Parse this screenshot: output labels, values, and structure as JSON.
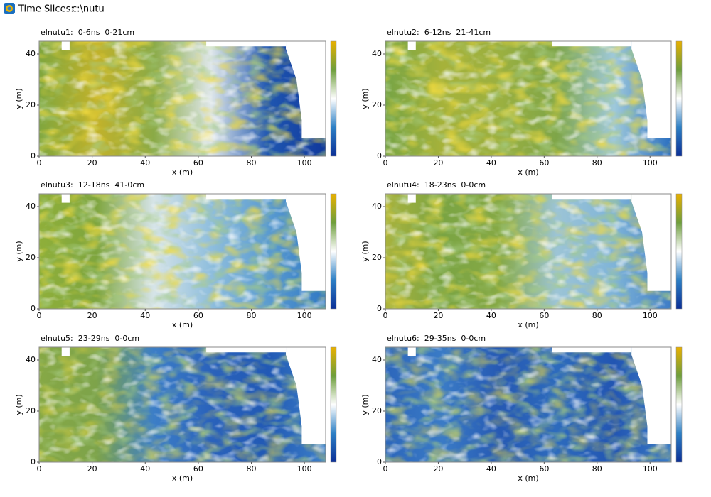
{
  "header": {
    "title": "Time Slices:",
    "path": "c:\\nutu"
  },
  "chart_data": [
    {
      "type": "heatmap",
      "title": "elnutu1:  0-6ns  0-21cm",
      "xlabel": "x (m)",
      "ylabel": "y (m)",
      "xlim": [
        0,
        108
      ],
      "ylim": [
        0,
        45
      ],
      "xticks": [
        0,
        20,
        40,
        60,
        80,
        100
      ],
      "yticks": [
        0,
        20,
        40
      ],
      "colorscale": [
        "#e8b000",
        "#6e9e3c",
        "#ffffff",
        "#2d7fc4",
        "#0b2f96"
      ]
    },
    {
      "type": "heatmap",
      "title": "elnutu2:  6-12ns  21-41cm",
      "xlabel": "x (m)",
      "ylabel": "y (m)",
      "xlim": [
        0,
        108
      ],
      "ylim": [
        0,
        45
      ],
      "xticks": [
        0,
        20,
        40,
        60,
        80,
        100
      ],
      "yticks": [
        0,
        20,
        40
      ],
      "colorscale": [
        "#e8b000",
        "#6e9e3c",
        "#ffffff",
        "#2d7fc4",
        "#0b2f96"
      ]
    },
    {
      "type": "heatmap",
      "title": "elnutu3:  12-18ns  41-0cm",
      "xlabel": "x (m)",
      "ylabel": "y (m)",
      "xlim": [
        0,
        108
      ],
      "ylim": [
        0,
        45
      ],
      "xticks": [
        0,
        20,
        40,
        60,
        80,
        100
      ],
      "yticks": [
        0,
        20,
        40
      ],
      "colorscale": [
        "#e8b000",
        "#6e9e3c",
        "#ffffff",
        "#2d7fc4",
        "#0b2f96"
      ]
    },
    {
      "type": "heatmap",
      "title": "elnutu4:  18-23ns  0-0cm",
      "xlabel": "x (m)",
      "ylabel": "y (m)",
      "xlim": [
        0,
        108
      ],
      "ylim": [
        0,
        45
      ],
      "xticks": [
        0,
        20,
        40,
        60,
        80,
        100
      ],
      "yticks": [
        0,
        20,
        40
      ],
      "colorscale": [
        "#e8b000",
        "#6e9e3c",
        "#ffffff",
        "#2d7fc4",
        "#0b2f96"
      ]
    },
    {
      "type": "heatmap",
      "title": "elnutu5:  23-29ns  0-0cm",
      "xlabel": "x (m)",
      "ylabel": "y (m)",
      "xlim": [
        0,
        108
      ],
      "ylim": [
        0,
        45
      ],
      "xticks": [
        0,
        20,
        40,
        60,
        80,
        100
      ],
      "yticks": [
        0,
        20,
        40
      ],
      "colorscale": [
        "#e8b000",
        "#6e9e3c",
        "#ffffff",
        "#2d7fc4",
        "#0b2f96"
      ]
    },
    {
      "type": "heatmap",
      "title": "elnutu6:  29-35ns  0-0cm",
      "xlabel": "x (m)",
      "ylabel": "y (m)",
      "xlim": [
        0,
        108
      ],
      "ylim": [
        0,
        45
      ],
      "xticks": [
        0,
        20,
        40,
        60,
        80,
        100
      ],
      "yticks": [
        0,
        20,
        40
      ],
      "colorscale": [
        "#e8b000",
        "#6e9e3c",
        "#ffffff",
        "#2d7fc4",
        "#0b2f96"
      ]
    }
  ]
}
